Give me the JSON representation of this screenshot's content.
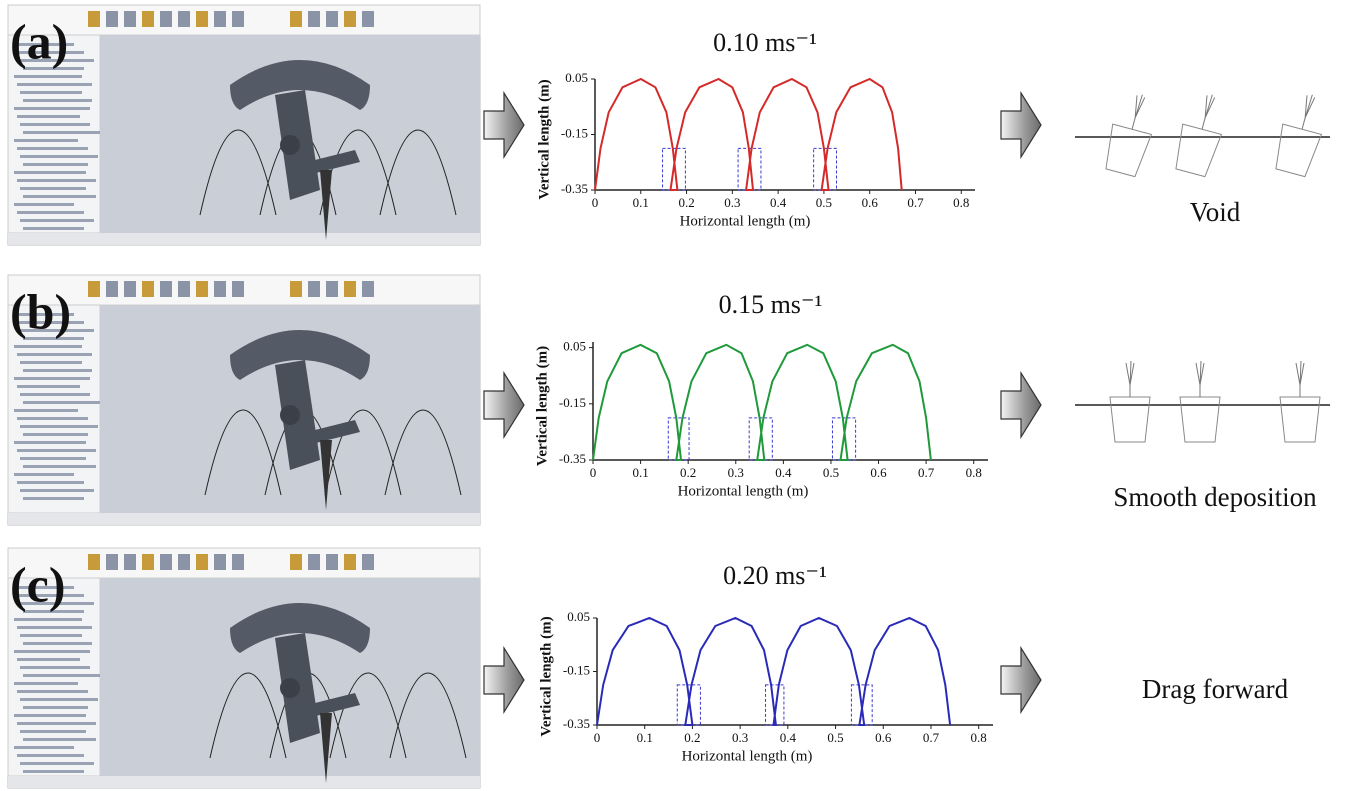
{
  "panels": [
    {
      "label": "(a)",
      "caption": "Void"
    },
    {
      "label": "(b)",
      "caption": "Smooth deposition"
    },
    {
      "label": "(c)",
      "caption": "Drag forward"
    }
  ],
  "chart_data": [
    {
      "type": "line",
      "title": "0.10 ms⁻¹",
      "x_label": "Horizontal length (m)",
      "y_label": "Vertical length  (m)",
      "color": "#d42a2a",
      "x": [
        0,
        0.012,
        0.03,
        0.06,
        0.1,
        0.132,
        0.156,
        0.17,
        0.18,
        0.165,
        0.178,
        0.197,
        0.228,
        0.27,
        0.3,
        0.323,
        0.336,
        0.345,
        0.33,
        0.342,
        0.36,
        0.39,
        0.43,
        0.462,
        0.486,
        0.5,
        0.51,
        0.495,
        0.508,
        0.527,
        0.558,
        0.6,
        0.628,
        0.649,
        0.662,
        0.67
      ],
      "values": [
        -0.35,
        -0.2,
        -0.07,
        0.02,
        0.05,
        0.02,
        -0.07,
        -0.2,
        -0.35,
        -0.35,
        -0.2,
        -0.07,
        0.02,
        0.05,
        0.02,
        -0.07,
        -0.2,
        -0.35,
        -0.35,
        -0.2,
        -0.07,
        0.02,
        0.05,
        0.02,
        -0.07,
        -0.2,
        -0.35,
        -0.35,
        -0.2,
        -0.07,
        0.02,
        0.05,
        0.02,
        -0.07,
        -0.2,
        -0.35
      ],
      "xlim": [
        0,
        0.83
      ],
      "ylim": [
        -0.35,
        0.05
      ],
      "xticks": [
        0,
        0.1,
        0.2,
        0.3,
        0.4,
        0.5,
        0.6,
        0.7,
        0.8
      ],
      "yticks": [
        0.05,
        -0.15,
        -0.35
      ]
    },
    {
      "type": "line",
      "title": "0.15 ms⁻¹",
      "x_label": "Horizontal length (m)",
      "y_label": "Vertical length  (m)",
      "color": "#1f9a3a",
      "x": [
        0,
        0.012,
        0.03,
        0.06,
        0.1,
        0.134,
        0.16,
        0.175,
        0.185,
        0.175,
        0.188,
        0.207,
        0.238,
        0.28,
        0.312,
        0.336,
        0.35,
        0.36,
        0.345,
        0.358,
        0.377,
        0.408,
        0.45,
        0.484,
        0.51,
        0.525,
        0.535,
        0.52,
        0.533,
        0.553,
        0.586,
        0.63,
        0.662,
        0.686,
        0.7,
        0.71
      ],
      "values": [
        -0.35,
        -0.2,
        -0.07,
        0.03,
        0.06,
        0.03,
        -0.07,
        -0.2,
        -0.35,
        -0.35,
        -0.2,
        -0.07,
        0.03,
        0.06,
        0.03,
        -0.07,
        -0.2,
        -0.35,
        -0.35,
        -0.2,
        -0.07,
        0.03,
        0.06,
        0.03,
        -0.07,
        -0.2,
        -0.35,
        -0.35,
        -0.2,
        -0.07,
        0.03,
        0.06,
        0.03,
        -0.07,
        -0.2,
        -0.35
      ],
      "xlim": [
        0,
        0.83
      ],
      "ylim": [
        -0.35,
        0.07
      ],
      "xticks": [
        0,
        0.1,
        0.2,
        0.3,
        0.4,
        0.5,
        0.6,
        0.7,
        0.8
      ],
      "yticks": [
        0.05,
        -0.15,
        -0.35
      ]
    },
    {
      "type": "line",
      "title": "0.20 ms⁻¹",
      "x_label": "Horizontal length (m)",
      "y_label": "Vertical length  (m)",
      "color": "#2a2ab8",
      "x": [
        0,
        0.013,
        0.033,
        0.066,
        0.11,
        0.146,
        0.173,
        0.189,
        0.2,
        0.185,
        0.198,
        0.217,
        0.248,
        0.29,
        0.324,
        0.35,
        0.365,
        0.375,
        0.37,
        0.381,
        0.399,
        0.427,
        0.465,
        0.503,
        0.532,
        0.549,
        0.56,
        0.55,
        0.563,
        0.582,
        0.613,
        0.655,
        0.689,
        0.715,
        0.73,
        0.74
      ],
      "values": [
        -0.35,
        -0.2,
        -0.07,
        0.02,
        0.05,
        0.02,
        -0.07,
        -0.2,
        -0.35,
        -0.35,
        -0.2,
        -0.07,
        0.02,
        0.05,
        0.02,
        -0.07,
        -0.2,
        -0.35,
        -0.35,
        -0.2,
        -0.07,
        0.02,
        0.05,
        0.02,
        -0.07,
        -0.2,
        -0.35,
        -0.35,
        -0.2,
        -0.07,
        0.02,
        0.05,
        0.02,
        -0.07,
        -0.2,
        -0.35
      ],
      "xlim": [
        0,
        0.83
      ],
      "ylim": [
        -0.35,
        0.05
      ],
      "xticks": [
        0,
        0.1,
        0.2,
        0.3,
        0.4,
        0.5,
        0.6,
        0.7,
        0.8
      ],
      "yticks": [
        0.05,
        -0.15,
        -0.35
      ]
    }
  ]
}
